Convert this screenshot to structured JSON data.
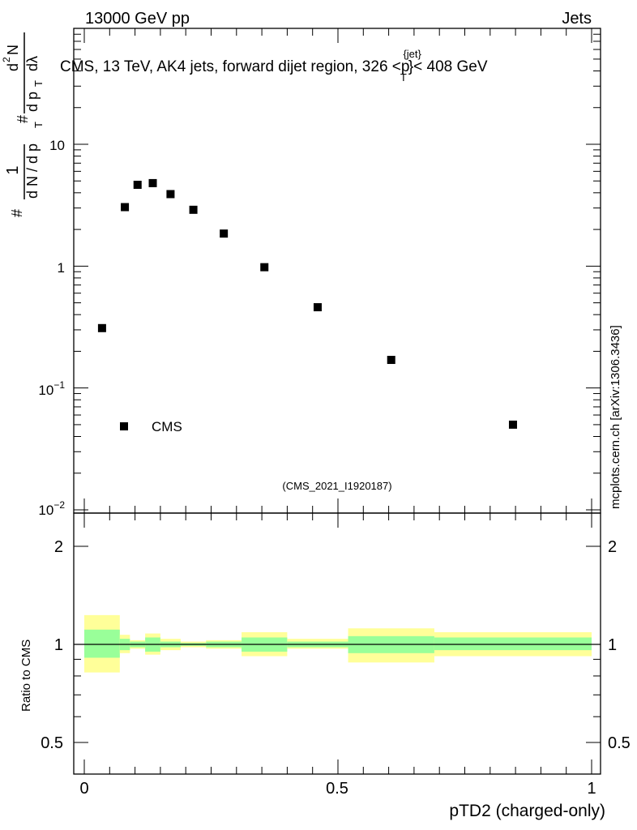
{
  "header": {
    "left_label": "13000 GeV pp",
    "right_label": "Jets"
  },
  "side_label": "mcplots.cern.ch [arXiv:1306.3436]",
  "main_plot": {
    "title": "CMS, 13 TeV, AK4 jets, forward dijet region, 326 <p",
    "title_sup": "{jet}",
    "title_sub": "T",
    "title_end": "}< 408 GeV",
    "ylabel": "# 1 / dN/dp_T # d²N / dp_T dλ",
    "ylabel_parts": {
      "hash1": "#",
      "frac_num": "1",
      "frac_den": "d N / d p",
      "frac_den_sub": "T",
      "hash2": "#",
      "num2": "d",
      "num2_sup": "2",
      "num2_N": "N",
      "den2": "d p",
      "den2_sub": "T",
      "den2_end": "dλ"
    },
    "legend_label": "CMS",
    "analysis_tag": "(CMS_2021_I1920187)",
    "yticks": [
      {
        "label": "10",
        "sup": "−2"
      },
      {
        "label": "10",
        "sup": "−1"
      },
      {
        "label": "1",
        "sup": ""
      },
      {
        "label": "10",
        "sup": ""
      }
    ]
  },
  "ratio_plot": {
    "ylabel": "Ratio to CMS",
    "yticks": [
      "0.5",
      "1",
      "2"
    ]
  },
  "x_axis": {
    "label": "pTD2 (charged-only)",
    "ticks": [
      "0",
      "0.5",
      "1"
    ]
  },
  "chart_data": {
    "type": "scatter",
    "title": "CMS, 13 TeV, AK4 jets, forward dijet region, 326 < pT^{jet} < 408 GeV",
    "xlabel": "pTD2 (charged-only)",
    "ylabel": "1/(dN/dpT) d²N/(dpT dλ)",
    "xlim": [
      0,
      1
    ],
    "ylim": [
      0.01,
      100
    ],
    "yscale": "log",
    "series": [
      {
        "name": "CMS",
        "x": [
          0.035,
          0.08,
          0.105,
          0.135,
          0.17,
          0.215,
          0.275,
          0.355,
          0.46,
          0.605,
          0.845
        ],
        "values": [
          0.31,
          3.05,
          4.65,
          4.8,
          3.9,
          2.9,
          1.85,
          0.98,
          0.46,
          0.17,
          0.05
        ]
      }
    ],
    "ratio": {
      "ylabel": "Ratio to CMS",
      "ylim": [
        0.4,
        2.5
      ],
      "bins": [
        {
          "lo": 0.0,
          "hi": 0.07,
          "stat_lo": 0.91,
          "stat_hi": 1.11,
          "tot_lo": 0.82,
          "tot_hi": 1.23
        },
        {
          "lo": 0.07,
          "hi": 0.09,
          "stat_lo": 0.96,
          "stat_hi": 1.04,
          "tot_lo": 0.94,
          "tot_hi": 1.07
        },
        {
          "lo": 0.09,
          "hi": 0.12,
          "stat_lo": 0.98,
          "stat_hi": 1.02,
          "tot_lo": 0.97,
          "tot_hi": 1.03
        },
        {
          "lo": 0.12,
          "hi": 0.15,
          "stat_lo": 0.95,
          "stat_hi": 1.05,
          "tot_lo": 0.93,
          "tot_hi": 1.08
        },
        {
          "lo": 0.15,
          "hi": 0.19,
          "stat_lo": 0.98,
          "stat_hi": 1.02,
          "tot_lo": 0.96,
          "tot_hi": 1.04
        },
        {
          "lo": 0.19,
          "hi": 0.24,
          "stat_lo": 0.99,
          "stat_hi": 1.01,
          "tot_lo": 0.98,
          "tot_hi": 1.02
        },
        {
          "lo": 0.24,
          "hi": 0.31,
          "stat_lo": 0.98,
          "stat_hi": 1.02,
          "tot_lo": 0.97,
          "tot_hi": 1.03
        },
        {
          "lo": 0.31,
          "hi": 0.4,
          "stat_lo": 0.95,
          "stat_hi": 1.05,
          "tot_lo": 0.92,
          "tot_hi": 1.09
        },
        {
          "lo": 0.4,
          "hi": 0.52,
          "stat_lo": 0.98,
          "stat_hi": 1.02,
          "tot_lo": 0.97,
          "tot_hi": 1.04
        },
        {
          "lo": 0.52,
          "hi": 0.69,
          "stat_lo": 0.94,
          "stat_hi": 1.06,
          "tot_lo": 0.88,
          "tot_hi": 1.12
        },
        {
          "lo": 0.69,
          "hi": 1.0,
          "stat_lo": 0.96,
          "stat_hi": 1.05,
          "tot_lo": 0.92,
          "tot_hi": 1.09
        }
      ]
    }
  },
  "colors": {
    "stat_band": "#99ff99",
    "total_band": "#ffff99",
    "marker": "#000000",
    "tag": "#888888"
  }
}
